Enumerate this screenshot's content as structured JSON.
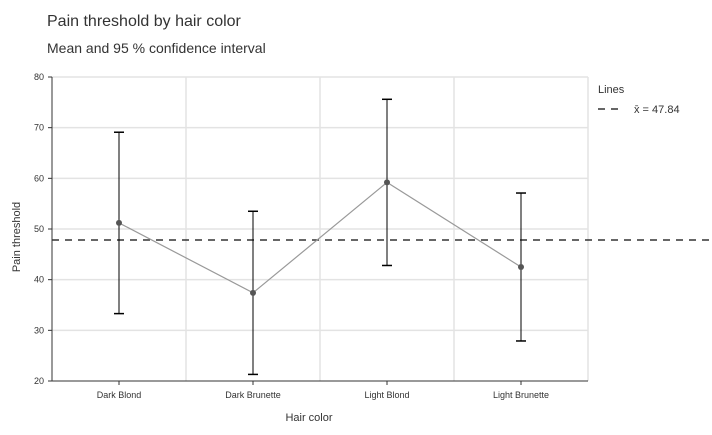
{
  "chart_data": {
    "type": "line",
    "title": "Pain threshold by hair color",
    "subtitle": "Mean and 95 % confidence interval",
    "xlabel": "Hair color",
    "ylabel": "Pain threshold",
    "categories": [
      "Dark Blond",
      "Dark Brunette",
      "Light Blond",
      "Light Brunette"
    ],
    "means": [
      51.2,
      37.4,
      59.2,
      42.5
    ],
    "ci_lower": [
      33.3,
      21.3,
      42.8,
      27.9
    ],
    "ci_upper": [
      69.1,
      53.5,
      75.6,
      57.1
    ],
    "ylim": [
      20,
      80
    ],
    "yticks": [
      20,
      30,
      40,
      50,
      60,
      70,
      80
    ],
    "grid": true,
    "reference_line": {
      "value": 47.84,
      "style": "dashed"
    },
    "legend": {
      "title": "Lines",
      "entries": [
        {
          "label": "x̄ = 47.84",
          "style": "dashed"
        }
      ],
      "placement": "right"
    },
    "colors": {
      "line": "#999999",
      "point": "#555555",
      "errorbar": "#000000",
      "refline": "#333333",
      "grid": "#e3e3e3",
      "axis": "#333333"
    }
  }
}
